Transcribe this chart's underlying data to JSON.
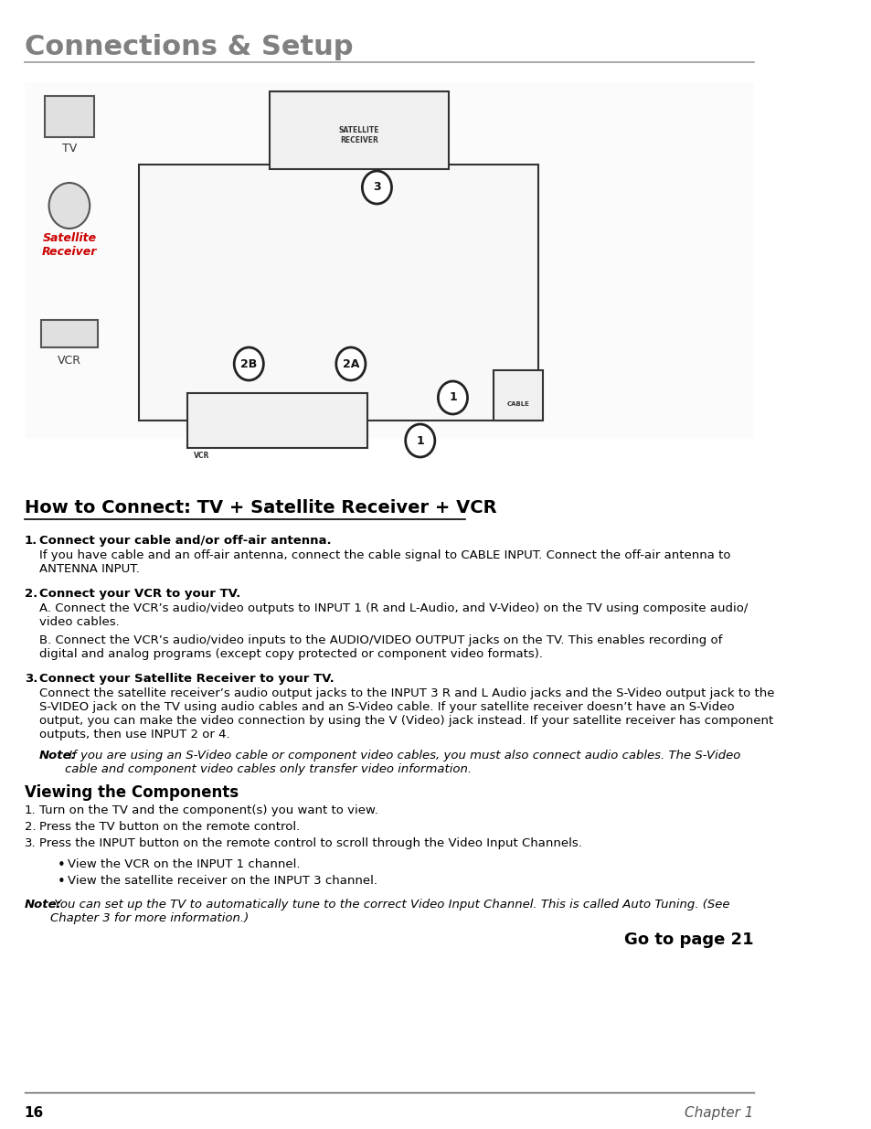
{
  "title": "Connections & Setup",
  "section_title": "How to Connect: TV + Satellite Receiver + VCR",
  "section_subtitle": "Viewing the Components",
  "bg_color": "#ffffff",
  "title_color": "#808080",
  "title_fontsize": 22,
  "body_fontsize": 9.5,
  "header_underline_color": "#999999",
  "page_number": "16",
  "chapter": "Chapter 1",
  "goto_text": "Go to page 21",
  "items_step1_bold": "Connect your cable and/or off-air antenna.",
  "items_step1_body": "If you have cable and an off-air antenna, connect the cable signal to CABLE INPUT. Connect the off-air antenna to\nANTENNA INPUT.",
  "items_step2_bold": "Connect your VCR to your TV.",
  "items_step2_bodyA": "A. Connect the VCR’s audio/video outputs to INPUT 1 (R and L-Audio, and V-Video) on the TV using composite audio/\nvideo cables.",
  "items_step2_bodyB": "B. Connect the VCR’s audio/video inputs to the AUDIO/VIDEO OUTPUT jacks on the TV. This enables recording of\ndigital and analog programs (except copy protected or component video formats).",
  "items_step3_bold": "Connect your Satellite Receiver to your TV.",
  "items_step3_body": "Connect the satellite receiver’s audio output jacks to the INPUT 3 R and L Audio jacks and the S-Video output jack to the\nS-VIDEO jack on the TV using audio cables and an S-Video cable. If your satellite receiver doesn’t have an S-Video\noutput, you can make the video connection by using the V (Video) jack instead. If your satellite receiver has component\noutputs, then use INPUT 2 or 4.",
  "items_step3_note": "Note: If you are using an S-Video cable or component video cables, you must also connect audio cables. The S-Video\ncable and component video cables only transfer video information.",
  "viewing_item1": "Turn on the TV and the component(s) you want to view.",
  "viewing_item2": "Press the TV button on the remote control.",
  "viewing_item3": "Press the INPUT button on the remote control to scroll through the Video Input Channels.",
  "viewing_bullet1": "View the VCR on the INPUT 1 channel.",
  "viewing_bullet2": "View the satellite receiver on the INPUT 3 channel.",
  "viewing_note": "Note: You can set up the TV to automatically tune to the correct Video Input Channel. This is called Auto Tuning. (See\nChapter 3 for more information.)"
}
